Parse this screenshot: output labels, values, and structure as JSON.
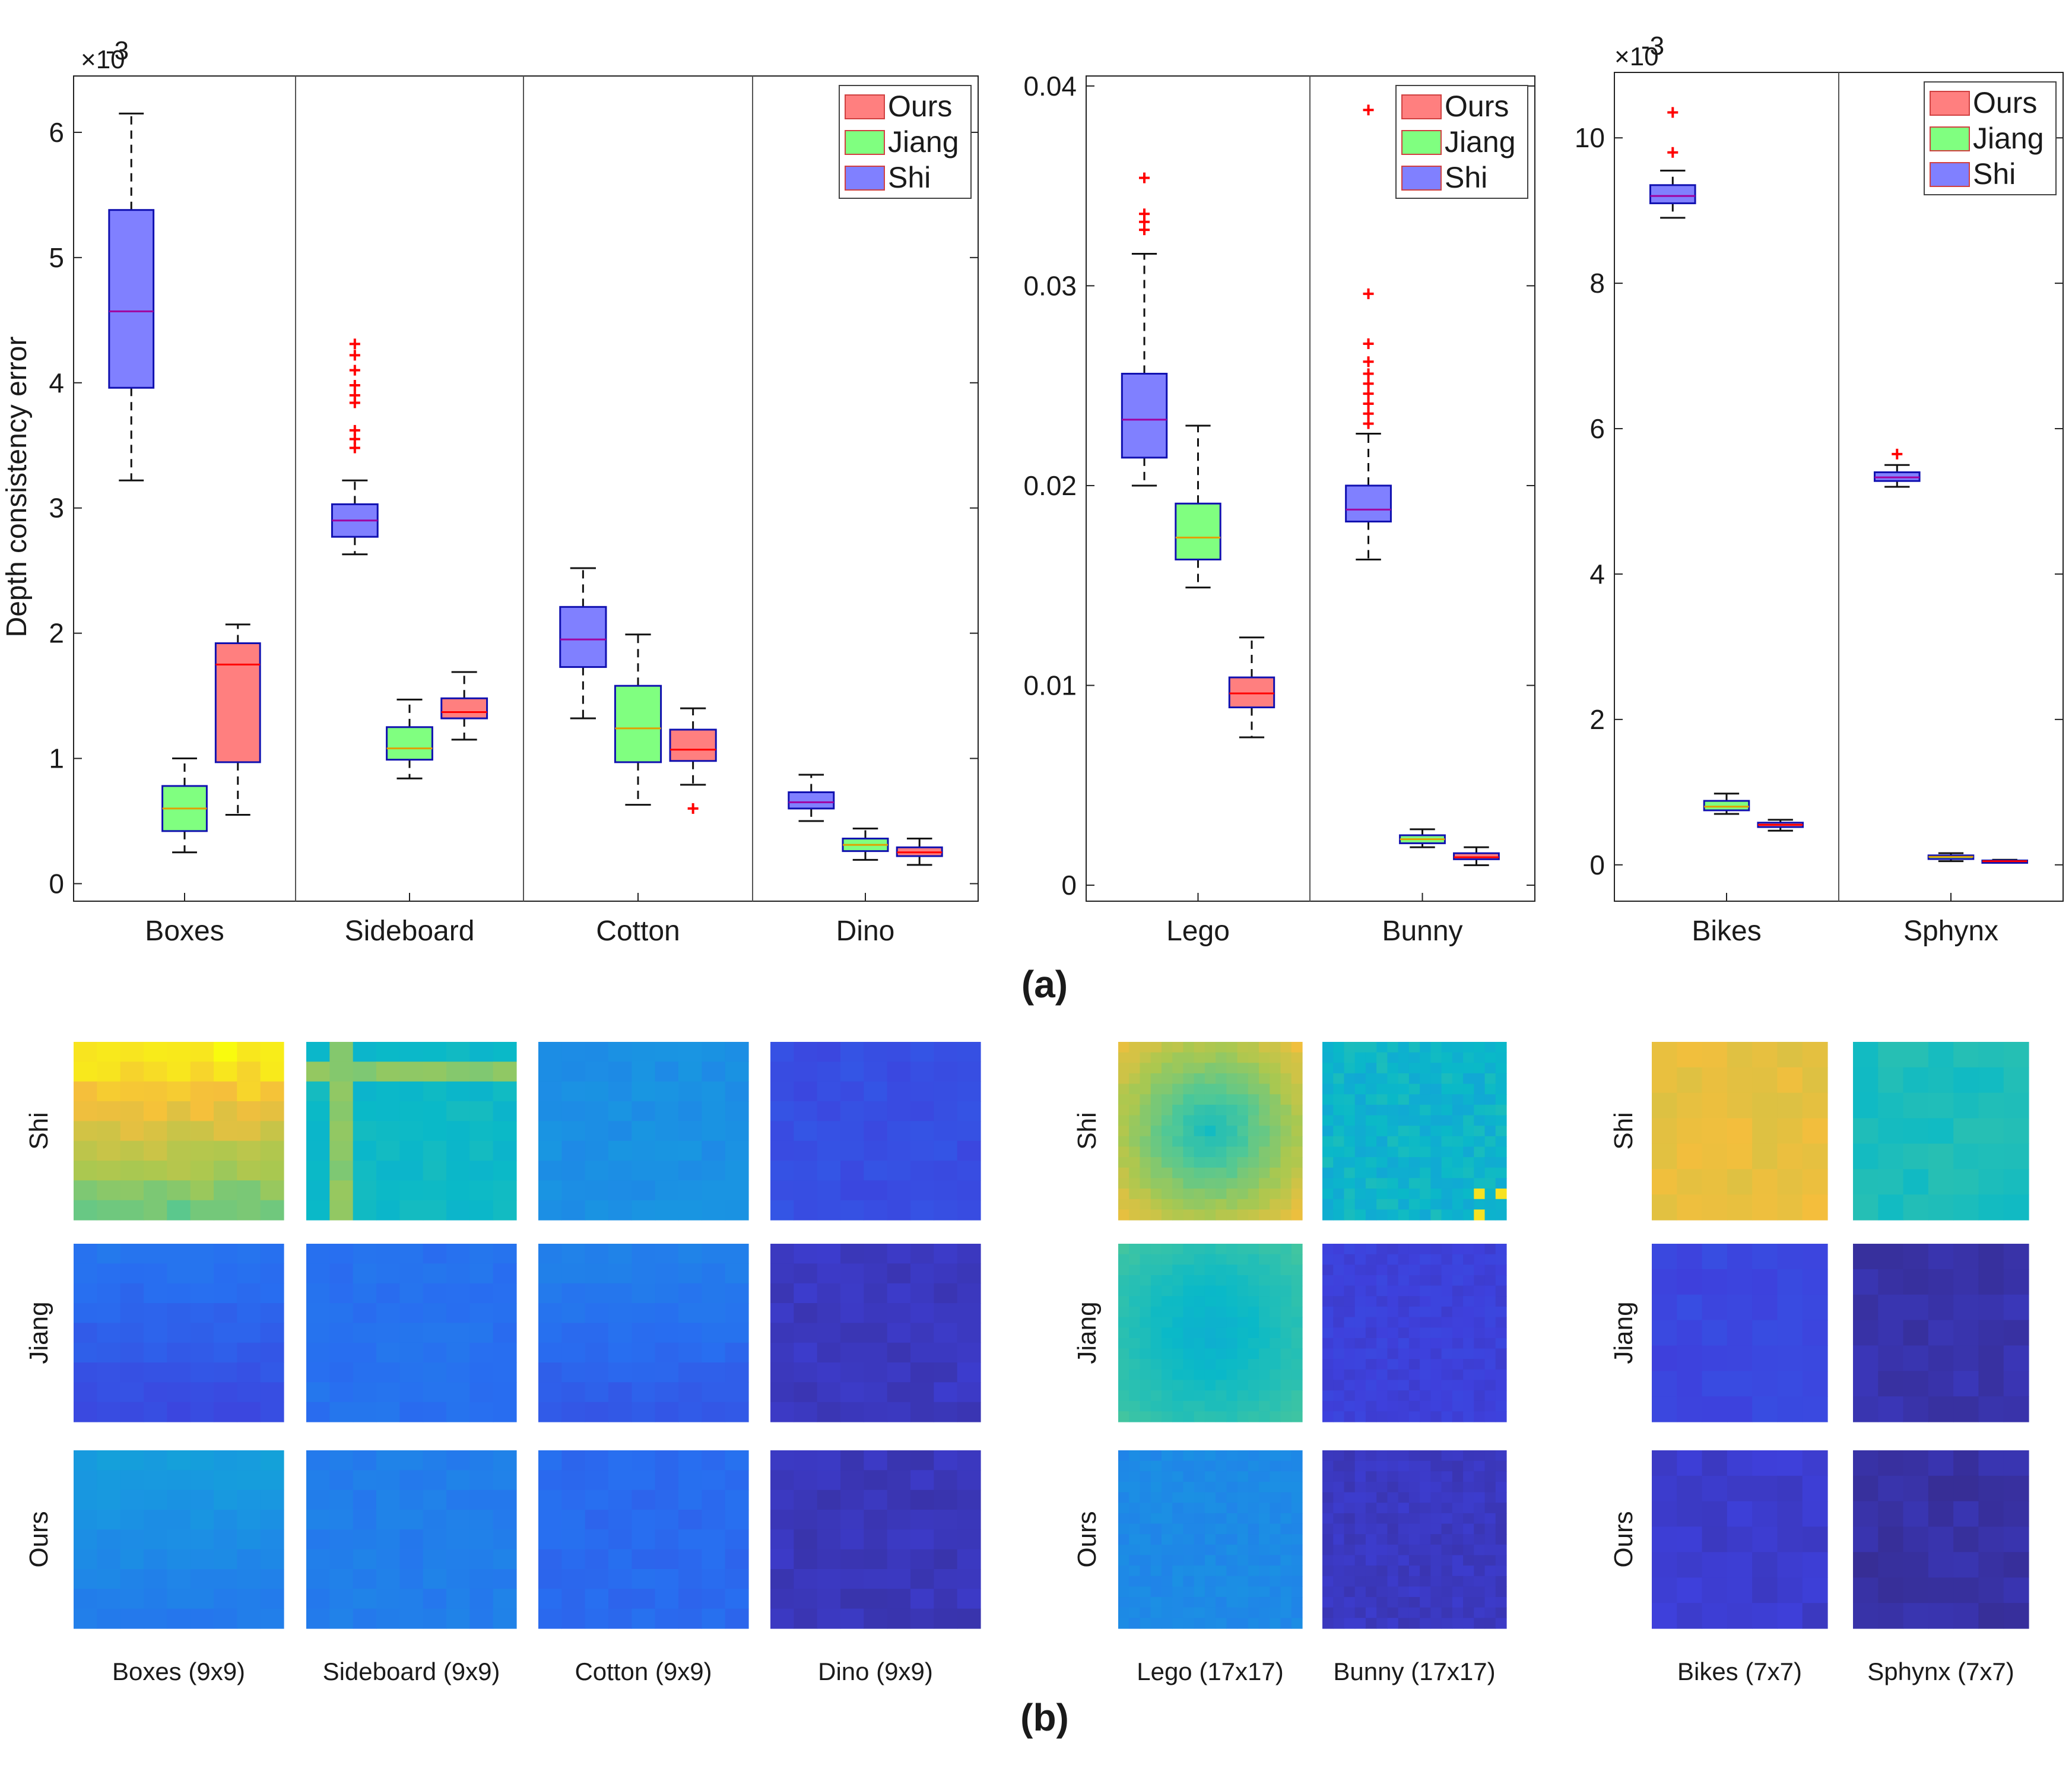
{
  "figure": {
    "label_a": "(a)",
    "label_b": "(b)",
    "ylabel": "Depth consistency error",
    "series_names": [
      "Ours",
      "Jiang",
      "Shi"
    ],
    "colors": {
      "Ours": "#ff7f7f",
      "Jiang": "#80ff80",
      "Shi": "#8080ff",
      "Ours_median": "#ff0000",
      "Jiang_median": "#e0a000",
      "Shi_median": "#a000a0",
      "box_edge": "#1010b0",
      "outlier": "#ff0000"
    }
  },
  "chart_data": [
    {
      "type": "boxplot",
      "ylabel": "Depth consistency error",
      "exponent_label": "×10",
      "exponent_power": "-3",
      "ylim": [
        -0.14,
        6.45
      ],
      "yticks": [
        0,
        1,
        2,
        3,
        4,
        5,
        6
      ],
      "ytick_labels": [
        "0",
        "1",
        "2",
        "3",
        "4",
        "5",
        "6"
      ],
      "legend": [
        "Ours",
        "Jiang",
        "Shi"
      ],
      "legend_position": "top-right",
      "groups": [
        {
          "name": "Boxes",
          "boxes": [
            {
              "series": "Shi",
              "q1": 3.96,
              "median": 4.57,
              "q3": 5.38,
              "whisker_low": 3.22,
              "whisker_high": 6.15,
              "outliers": []
            },
            {
              "series": "Jiang",
              "q1": 0.42,
              "median": 0.6,
              "q3": 0.78,
              "whisker_low": 0.25,
              "whisker_high": 1.0,
              "outliers": []
            },
            {
              "series": "Ours",
              "q1": 0.97,
              "median": 1.75,
              "q3": 1.92,
              "whisker_low": 0.55,
              "whisker_high": 2.07,
              "outliers": []
            }
          ]
        },
        {
          "name": "Sideboard",
          "boxes": [
            {
              "series": "Shi",
              "q1": 2.77,
              "median": 2.9,
              "q3": 3.03,
              "whisker_low": 2.63,
              "whisker_high": 3.22,
              "outliers": [
                3.48,
                3.55,
                3.62,
                3.84,
                3.9,
                3.98,
                4.1,
                4.22,
                4.31
              ]
            },
            {
              "series": "Jiang",
              "q1": 0.99,
              "median": 1.08,
              "q3": 1.25,
              "whisker_low": 0.84,
              "whisker_high": 1.47,
              "outliers": []
            },
            {
              "series": "Ours",
              "q1": 1.32,
              "median": 1.37,
              "q3": 1.48,
              "whisker_low": 1.15,
              "whisker_high": 1.69,
              "outliers": []
            }
          ]
        },
        {
          "name": "Cotton",
          "boxes": [
            {
              "series": "Shi",
              "q1": 1.73,
              "median": 1.95,
              "q3": 2.21,
              "whisker_low": 1.32,
              "whisker_high": 2.52,
              "outliers": []
            },
            {
              "series": "Jiang",
              "q1": 0.97,
              "median": 1.24,
              "q3": 1.58,
              "whisker_low": 0.63,
              "whisker_high": 1.99,
              "outliers": []
            },
            {
              "series": "Ours",
              "q1": 0.98,
              "median": 1.07,
              "q3": 1.23,
              "whisker_low": 0.79,
              "whisker_high": 1.4,
              "outliers": [
                0.6
              ]
            }
          ]
        },
        {
          "name": "Dino",
          "boxes": [
            {
              "series": "Shi",
              "q1": 0.6,
              "median": 0.65,
              "q3": 0.73,
              "whisker_low": 0.5,
              "whisker_high": 0.87,
              "outliers": []
            },
            {
              "series": "Jiang",
              "q1": 0.26,
              "median": 0.31,
              "q3": 0.36,
              "whisker_low": 0.19,
              "whisker_high": 0.44,
              "outliers": []
            },
            {
              "series": "Ours",
              "q1": 0.22,
              "median": 0.25,
              "q3": 0.29,
              "whisker_low": 0.15,
              "whisker_high": 0.36,
              "outliers": []
            }
          ]
        }
      ]
    },
    {
      "type": "boxplot",
      "ylim": [
        -0.0008,
        0.0405
      ],
      "yticks": [
        0,
        0.01,
        0.02,
        0.03,
        0.04
      ],
      "ytick_labels": [
        "0",
        "0.01",
        "0.02",
        "0.03",
        "0.04"
      ],
      "legend": [
        "Ours",
        "Jiang",
        "Shi"
      ],
      "legend_position": "top-right",
      "groups": [
        {
          "name": "Lego",
          "boxes": [
            {
              "series": "Shi",
              "q1": 0.0214,
              "median": 0.0233,
              "q3": 0.0256,
              "whisker_low": 0.02,
              "whisker_high": 0.0316,
              "outliers": [
                0.0328,
                0.0332,
                0.0336,
                0.0354
              ]
            },
            {
              "series": "Jiang",
              "q1": 0.0163,
              "median": 0.0174,
              "q3": 0.0191,
              "whisker_low": 0.0149,
              "whisker_high": 0.023,
              "outliers": []
            },
            {
              "series": "Ours",
              "q1": 0.0089,
              "median": 0.0096,
              "q3": 0.0104,
              "whisker_low": 0.0074,
              "whisker_high": 0.0124,
              "outliers": []
            }
          ]
        },
        {
          "name": "Bunny",
          "boxes": [
            {
              "series": "Shi",
              "q1": 0.0182,
              "median": 0.0188,
              "q3": 0.02,
              "whisker_low": 0.0163,
              "whisker_high": 0.0226,
              "outliers": [
                0.0231,
                0.0236,
                0.0241,
                0.0246,
                0.0251,
                0.0256,
                0.0262,
                0.0271,
                0.0296,
                0.0388
              ]
            },
            {
              "series": "Jiang",
              "q1": 0.0021,
              "median": 0.0023,
              "q3": 0.0025,
              "whisker_low": 0.0019,
              "whisker_high": 0.0028,
              "outliers": []
            },
            {
              "series": "Ours",
              "q1": 0.0013,
              "median": 0.0014,
              "q3": 0.0016,
              "whisker_low": 0.001,
              "whisker_high": 0.0019,
              "outliers": []
            }
          ]
        }
      ]
    },
    {
      "type": "boxplot",
      "exponent_label": "×10",
      "exponent_power": "-3",
      "ylim": [
        -0.5,
        10.9
      ],
      "yticks": [
        0,
        2,
        4,
        6,
        8,
        10
      ],
      "ytick_labels": [
        "0",
        "2",
        "4",
        "6",
        "8",
        "10"
      ],
      "legend": [
        "Ours",
        "Jiang",
        "Shi"
      ],
      "legend_position": "top-right",
      "groups": [
        {
          "name": "Bikes",
          "boxes": [
            {
              "series": "Shi",
              "q1": 9.1,
              "median": 9.2,
              "q3": 9.35,
              "whisker_low": 8.9,
              "whisker_high": 9.55,
              "outliers": [
                9.8,
                10.35
              ]
            },
            {
              "series": "Jiang",
              "q1": 0.75,
              "median": 0.8,
              "q3": 0.88,
              "whisker_low": 0.7,
              "whisker_high": 0.98,
              "outliers": []
            },
            {
              "series": "Ours",
              "q1": 0.52,
              "median": 0.55,
              "q3": 0.58,
              "whisker_low": 0.47,
              "whisker_high": 0.62,
              "outliers": []
            }
          ]
        },
        {
          "name": "Sphynx",
          "boxes": [
            {
              "series": "Shi",
              "q1": 5.28,
              "median": 5.33,
              "q3": 5.4,
              "whisker_low": 5.2,
              "whisker_high": 5.5,
              "outliers": [
                5.65
              ]
            },
            {
              "series": "Jiang",
              "q1": 0.08,
              "median": 0.11,
              "q3": 0.13,
              "whisker_low": 0.05,
              "whisker_high": 0.16,
              "outliers": []
            },
            {
              "series": "Ours",
              "q1": 0.04,
              "median": 0.05,
              "q3": 0.06,
              "whisker_low": 0.03,
              "whisker_high": 0.07,
              "outliers": []
            }
          ]
        }
      ]
    }
  ],
  "heatmaps": {
    "row_labels": [
      "Shi",
      "Jiang",
      "Ours"
    ],
    "scenes": [
      {
        "caption": "Boxes (9x9)",
        "grid": 9,
        "levels": [
          0.82,
          0.22,
          0.36
        ],
        "pattern": [
          "vgrad_hi_top",
          "vgrad_lo_bottom",
          "vgrad_lo_bottom"
        ]
      },
      {
        "caption": "Sideboard (9x9)",
        "grid": 9,
        "levels": [
          0.52,
          0.26,
          0.3
        ],
        "pattern": [
          "cross",
          "flat",
          "flat"
        ]
      },
      {
        "caption": "Cotton (9x9)",
        "grid": 9,
        "levels": [
          0.36,
          0.26,
          0.24
        ],
        "pattern": [
          "flat",
          "vgrad_lo_bottom",
          "flat"
        ]
      },
      {
        "caption": "Dino (9x9)",
        "grid": 9,
        "levels": [
          0.16,
          0.08,
          0.07
        ],
        "pattern": [
          "flat",
          "flat",
          "flat"
        ]
      },
      {
        "caption": "Lego (17x17)",
        "grid": 17,
        "levels": [
          0.66,
          0.52,
          0.34
        ],
        "pattern": [
          "ring",
          "ring_soft",
          "flat"
        ]
      },
      {
        "caption": "Bunny (17x17)",
        "grid": 17,
        "levels": [
          0.5,
          0.12,
          0.08
        ],
        "pattern": [
          "noisy",
          "flat",
          "flat"
        ]
      },
      {
        "caption": "Bikes (7x7)",
        "grid": 7,
        "levels": [
          0.86,
          0.14,
          0.1
        ],
        "pattern": [
          "flat",
          "flat",
          "flat"
        ]
      },
      {
        "caption": "Sphynx (7x7)",
        "grid": 7,
        "levels": [
          0.55,
          0.05,
          0.04
        ],
        "pattern": [
          "flat",
          "flat",
          "flat"
        ]
      }
    ]
  }
}
